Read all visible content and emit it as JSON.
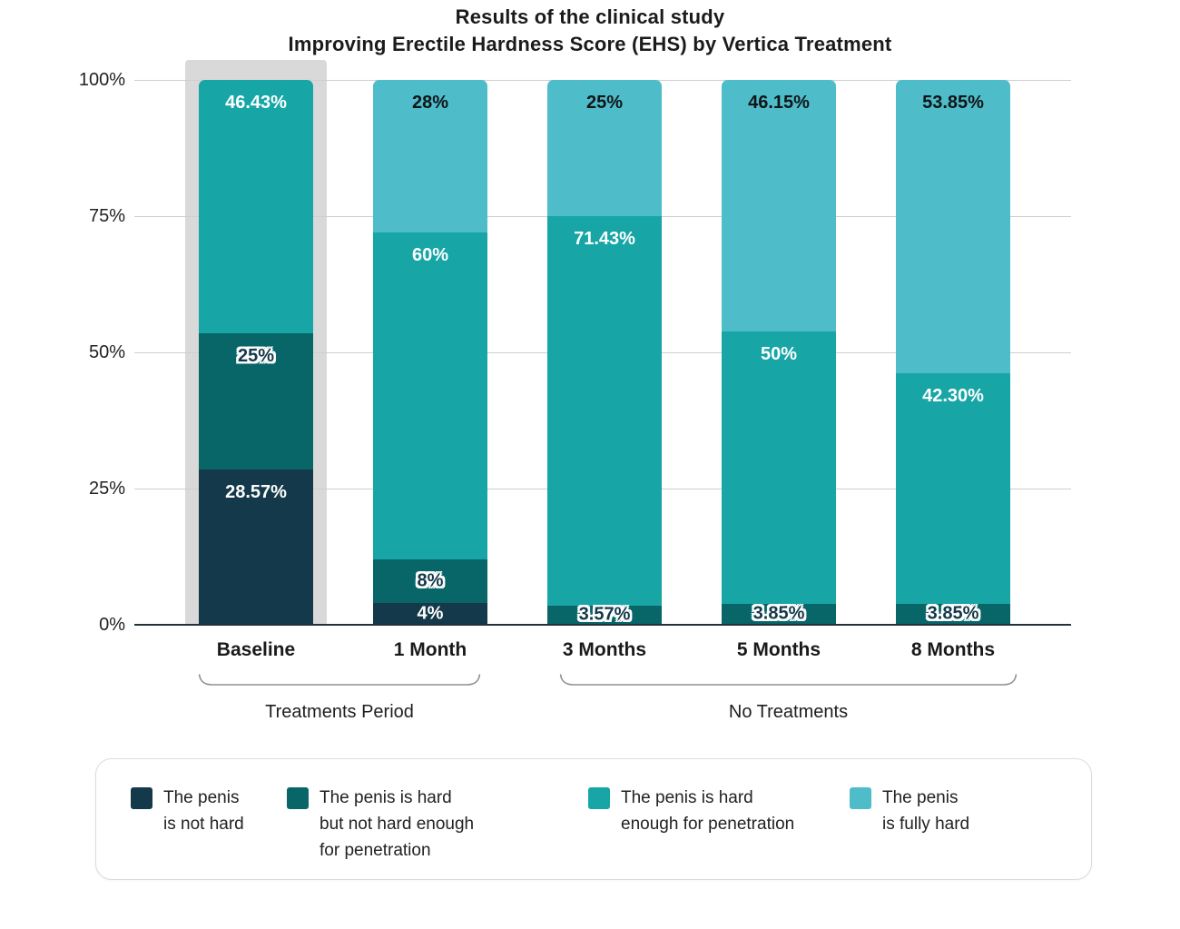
{
  "title": {
    "line1": "Results of the clinical study",
    "line2": "Improving Erectile Hardness Score (EHS) by Vertica Treatment"
  },
  "chart_data": {
    "type": "bar",
    "stacked": true,
    "units": "percent",
    "title": "Results of the clinical study — Improving Erectile Hardness Score (EHS) by Vertica Treatment",
    "categories": [
      "Baseline",
      "1 Month",
      "3 Months",
      "5 Months",
      "8 Months"
    ],
    "series": [
      {
        "name": "The penis is not hard",
        "color": "#14394a",
        "label_style": "white",
        "values": [
          28.57,
          4,
          0,
          0,
          0
        ],
        "labels": [
          "28.57%",
          "4%",
          "",
          "",
          ""
        ]
      },
      {
        "name": "The penis is hard but not hard enough for penetration",
        "color": "#086669",
        "label_style": "outline",
        "values": [
          25,
          8,
          3.57,
          3.85,
          3.85
        ],
        "labels": [
          "25%",
          "8%",
          "3.57%",
          "3.85%",
          "3.85%"
        ]
      },
      {
        "name": "The penis is hard enough for penetration",
        "color": "#17a5a6",
        "label_style": "white",
        "values": [
          46.43,
          60,
          71.43,
          50,
          42.3
        ],
        "labels": [
          "46.43%",
          "60%",
          "71.43%",
          "50%",
          "42.30%"
        ]
      },
      {
        "name": "The penis is fully hard",
        "color": "#4ebdc9",
        "label_style": "dark",
        "values": [
          0,
          28,
          25,
          46.15,
          53.85
        ],
        "labels": [
          "",
          "28%",
          "25%",
          "46.15%",
          "53.85%"
        ]
      }
    ],
    "ylim": [
      0,
      100
    ],
    "yticks": [
      "0%",
      "25%",
      "50%",
      "75%",
      "100%"
    ],
    "grid": true,
    "legend_position": "bottom",
    "highlight": {
      "category": "Baseline",
      "color": "#d9d9d9"
    },
    "groups": [
      {
        "label": "Treatments Period",
        "categories": [
          "Baseline",
          "1 Month"
        ]
      },
      {
        "label": "No Treatments",
        "categories": [
          "3 Months",
          "5 Months",
          "8 Months"
        ]
      }
    ]
  },
  "legend": {
    "items": [
      {
        "label": "The penis\nis not hard"
      },
      {
        "label": "The penis is hard\nbut not hard enough\nfor penetration"
      },
      {
        "label": "The penis is hard\nenough for penetration"
      },
      {
        "label": "The penis\nis fully hard"
      }
    ]
  }
}
